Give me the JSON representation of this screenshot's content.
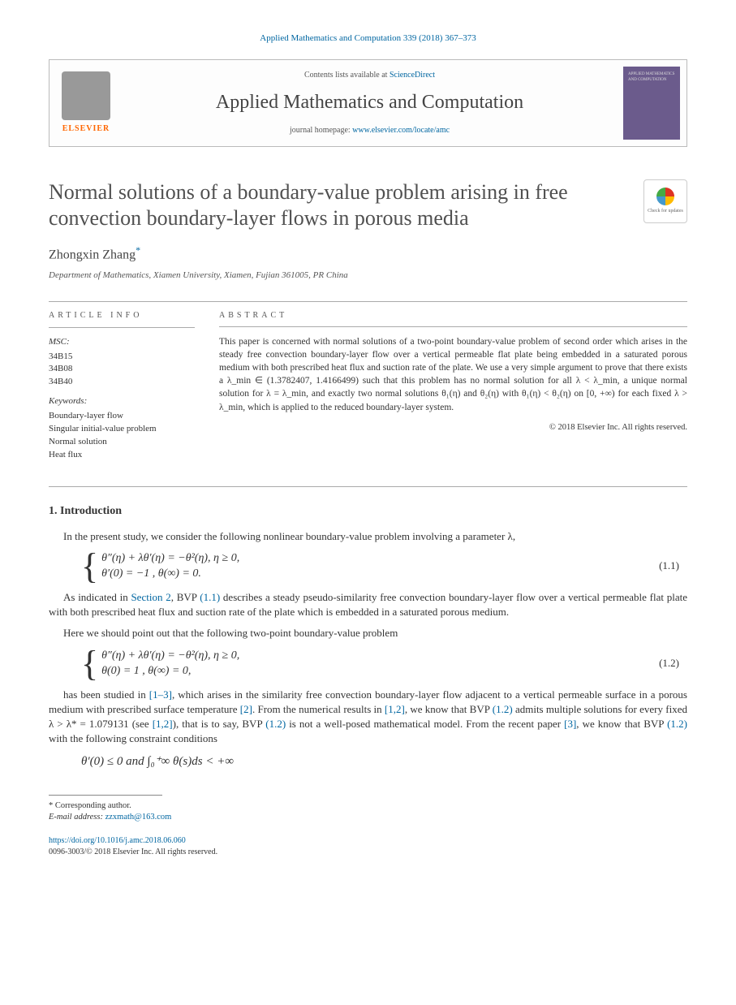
{
  "journal_ref": "Applied Mathematics and Computation 339 (2018) 367–373",
  "header": {
    "elsevier": "ELSEVIER",
    "contents_prefix": "Contents lists available at ",
    "contents_link": "ScienceDirect",
    "journal_name": "Applied Mathematics and Computation",
    "homepage_prefix": "journal homepage: ",
    "homepage_link": "www.elsevier.com/locate/amc",
    "cover_label": "APPLIED MATHEMATICS AND COMPUTATION"
  },
  "check_updates": "Check for updates",
  "title": "Normal solutions of a boundary-value problem arising in free convection boundary-layer flows in porous media",
  "author": "Zhongxin Zhang",
  "author_mark": "*",
  "affiliation": "Department of Mathematics, Xiamen University, Xiamen, Fujian 361005, PR China",
  "info": {
    "head": "article info",
    "msc_label": "MSC:",
    "msc": [
      "34B15",
      "34B08",
      "34B40"
    ],
    "kw_label": "Keywords:",
    "keywords": [
      "Boundary-layer flow",
      "Singular initial-value problem",
      "Normal solution",
      "Heat flux"
    ]
  },
  "abstract": {
    "head": "abstract",
    "text": "This paper is concerned with normal solutions of a two-point boundary-value problem of second order which arises in the steady free convection boundary-layer flow over a vertical permeable flat plate being embedded in a saturated porous medium with both prescribed heat flux and suction rate of the plate. We use a very simple argument to prove that there exists a λ_min ∈ (1.3782407, 1.4166499) such that this problem has no normal solution for all λ < λ_min, a unique normal solution for λ = λ_min, and exactly two normal solutions θ₁(η) and θ₂(η) with θ₁(η) < θ₂(η) on [0, +∞) for each fixed λ > λ_min, which is applied to the reduced boundary-layer system.",
    "copyright": "© 2018 Elsevier Inc. All rights reserved."
  },
  "section1": {
    "head": "1. Introduction",
    "p1_a": "In the present study, we consider the following nonlinear boundary-value problem involving a parameter λ,",
    "eq11_l1": "θ″(η) + λθ′(η) = −θ²(η),  η ≥ 0,",
    "eq11_l2": "θ′(0) = −1 ,  θ(∞) = 0.",
    "eq11_num": "(1.1)",
    "p2_a": "As indicated in ",
    "p2_link1": "Section 2",
    "p2_b": ", BVP ",
    "p2_link2": "(1.1)",
    "p2_c": " describes a steady pseudo-similarity free convection boundary-layer flow over a vertical permeable flat plate with both prescribed heat flux and suction rate of the plate which is embedded in a saturated porous medium.",
    "p3": "Here we should point out that the following two-point boundary-value problem",
    "eq12_l1": "θ″(η) + λθ′(η) = −θ²(η),  η ≥ 0,",
    "eq12_l2": "θ(0) = 1 ,  θ(∞) = 0,",
    "eq12_num": "(1.2)",
    "p4_a": "has been studied in ",
    "p4_link1": "[1–3]",
    "p4_b": ", which arises in the similarity free convection boundary-layer flow adjacent to a vertical permeable surface in a porous medium with prescribed surface temperature ",
    "p4_link2": "[2]",
    "p4_c": ". From the numerical results in ",
    "p4_link3": "[1,2]",
    "p4_d": ", we know that BVP ",
    "p4_link4": "(1.2)",
    "p4_e": " admits multiple solutions for every fixed λ > λ* = 1.079131 (see ",
    "p4_link5": "[1,2]",
    "p4_f": "), that is to say, BVP ",
    "p4_link6": "(1.2)",
    "p4_g": " is not a well-posed mathematical model. From the recent paper ",
    "p4_link7": "[3]",
    "p4_h": ", we know that BVP ",
    "p4_link8": "(1.2)",
    "p4_i": " with the following constraint conditions",
    "eq_constraint": "θ′(0) ≤ 0  and  ∫₀⁺∞ θ(s)ds < +∞"
  },
  "footnote": {
    "corr": "* Corresponding author.",
    "email_label": "E-mail address: ",
    "email": "zzxmath@163.com"
  },
  "footer": {
    "doi": "https://doi.org/10.1016/j.amc.2018.06.060",
    "rights": "0096-3003/© 2018 Elsevier Inc. All rights reserved."
  }
}
